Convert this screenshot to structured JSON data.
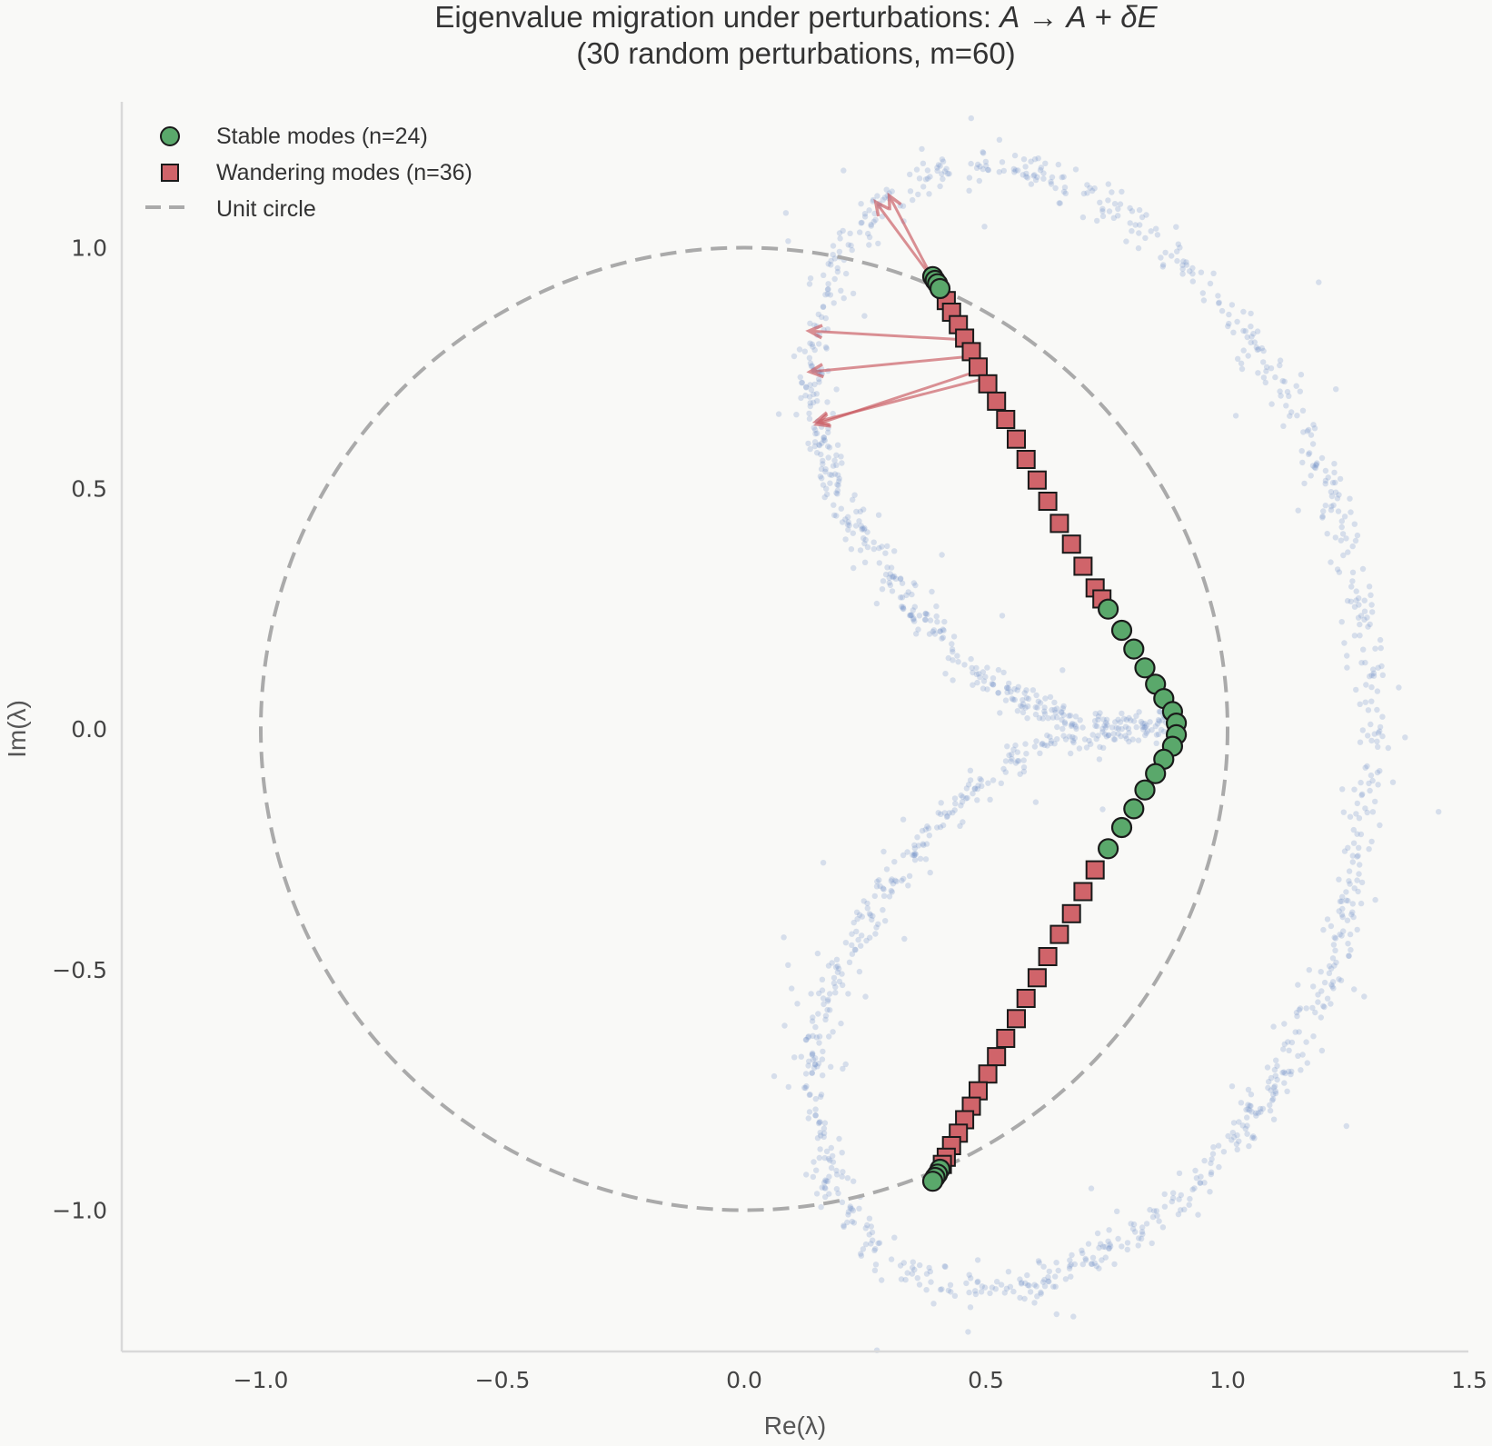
{
  "chart_data": {
    "type": "scatter",
    "title": "Eigenvalue migration under perturbations: A → A + δE",
    "title_parts": {
      "prefix": "Eigenvalue migration under perturbations: ",
      "math_a": "A",
      "arrow": " → ",
      "math_b": "A",
      "plus": " + ",
      "math_c": "δE"
    },
    "subtitle": "(30 random perturbations, m=60)",
    "xlabel": "Re(λ)",
    "ylabel": "Im(λ)",
    "xlim": [
      -1.3,
      1.5
    ],
    "ylim": [
      -1.3,
      1.28
    ],
    "xticks": [
      -1.0,
      -0.5,
      0.0,
      0.5,
      1.0,
      1.5
    ],
    "xtick_labels": [
      "−1.0",
      "−0.5",
      "0.0",
      "0.5",
      "1.0",
      "1.5"
    ],
    "yticks": [
      1.0,
      0.5,
      0.0,
      -0.5,
      -1.0
    ],
    "ytick_labels": [
      "1.0",
      "0.5",
      "0.0",
      "−0.5",
      "−1.0"
    ],
    "grid": false,
    "legend_position": "upper left",
    "legend": [
      {
        "label": "Stable modes (n=24)",
        "marker": "circle",
        "color": "#5aa86b"
      },
      {
        "label": "Wandering modes (n=36)",
        "marker": "square",
        "color": "#d0646a"
      },
      {
        "label": "Unit circle",
        "marker": "dashed-line",
        "color": "#aaaaaa"
      }
    ],
    "colors": {
      "stable": "#5aa86b",
      "wandering": "#d0646a",
      "unit_circle": "#aaaaaa",
      "perturbed": "#6f8fc7",
      "arrow": "#c9575e",
      "edge": "#1a1a1a",
      "axis": "#d9d9d9",
      "background": "#f9f9f7"
    },
    "series": [
      {
        "name": "Stable modes (n=24)",
        "marker": "circle",
        "points": [
          [
            0.39,
            0.94
          ],
          [
            0.395,
            0.932
          ],
          [
            0.4,
            0.925
          ],
          [
            0.405,
            0.915
          ],
          [
            0.753,
            0.249
          ],
          [
            0.781,
            0.205
          ],
          [
            0.806,
            0.166
          ],
          [
            0.829,
            0.127
          ],
          [
            0.851,
            0.093
          ],
          [
            0.868,
            0.063
          ],
          [
            0.886,
            0.036
          ],
          [
            0.894,
            0.012
          ],
          [
            0.894,
            -0.012
          ],
          [
            0.886,
            -0.036
          ],
          [
            0.868,
            -0.063
          ],
          [
            0.851,
            -0.093
          ],
          [
            0.829,
            -0.127
          ],
          [
            0.806,
            -0.166
          ],
          [
            0.781,
            -0.205
          ],
          [
            0.753,
            -0.249
          ],
          [
            0.405,
            -0.915
          ],
          [
            0.4,
            -0.925
          ],
          [
            0.395,
            -0.932
          ],
          [
            0.39,
            -0.94
          ]
        ]
      },
      {
        "name": "Wandering modes (n=36)",
        "marker": "square",
        "points": [
          [
            0.418,
            0.89
          ],
          [
            0.429,
            0.866
          ],
          [
            0.443,
            0.84
          ],
          [
            0.456,
            0.812
          ],
          [
            0.47,
            0.784
          ],
          [
            0.484,
            0.752
          ],
          [
            0.504,
            0.717
          ],
          [
            0.522,
            0.681
          ],
          [
            0.541,
            0.643
          ],
          [
            0.563,
            0.602
          ],
          [
            0.583,
            0.56
          ],
          [
            0.606,
            0.517
          ],
          [
            0.628,
            0.473
          ],
          [
            0.652,
            0.427
          ],
          [
            0.677,
            0.384
          ],
          [
            0.701,
            0.338
          ],
          [
            0.726,
            0.293
          ],
          [
            0.74,
            0.27
          ],
          [
            0.726,
            -0.293
          ],
          [
            0.701,
            -0.338
          ],
          [
            0.677,
            -0.384
          ],
          [
            0.652,
            -0.427
          ],
          [
            0.628,
            -0.473
          ],
          [
            0.606,
            -0.517
          ],
          [
            0.583,
            -0.56
          ],
          [
            0.563,
            -0.602
          ],
          [
            0.541,
            -0.643
          ],
          [
            0.522,
            -0.681
          ],
          [
            0.504,
            -0.717
          ],
          [
            0.484,
            -0.752
          ],
          [
            0.47,
            -0.784
          ],
          [
            0.456,
            -0.812
          ],
          [
            0.443,
            -0.84
          ],
          [
            0.429,
            -0.866
          ],
          [
            0.418,
            -0.89
          ],
          [
            0.41,
            -0.905
          ]
        ]
      },
      {
        "name": "Perturbed eigenvalues (cloud)",
        "marker": "dot",
        "description": "Faint blue scatter forming a heart-shaped envelope: outer lobe from (0.15,0.85) up to (0.55,1.17), down the right side to (1.3,0.0) and back to (0.55,-1.17), (0.15,-0.85); inner arm tracing from (0.15,0.6) down to the cusp near (0.65..0.9, 0.0)",
        "envelope_outer": [
          [
            0.14,
            0.75
          ],
          [
            0.18,
            0.95
          ],
          [
            0.27,
            1.08
          ],
          [
            0.4,
            1.15
          ],
          [
            0.55,
            1.17
          ],
          [
            0.7,
            1.12
          ],
          [
            0.85,
            1.02
          ],
          [
            1.0,
            0.88
          ],
          [
            1.12,
            0.7
          ],
          [
            1.21,
            0.5
          ],
          [
            1.27,
            0.28
          ],
          [
            1.3,
            0.05
          ],
          [
            1.3,
            -0.05
          ],
          [
            1.27,
            -0.28
          ],
          [
            1.21,
            -0.5
          ],
          [
            1.12,
            -0.7
          ],
          [
            1.0,
            -0.88
          ],
          [
            0.85,
            -1.02
          ],
          [
            0.7,
            -1.12
          ],
          [
            0.55,
            -1.17
          ],
          [
            0.4,
            -1.15
          ],
          [
            0.27,
            -1.08
          ],
          [
            0.18,
            -0.95
          ],
          [
            0.14,
            -0.75
          ]
        ],
        "envelope_inner": [
          [
            0.14,
            0.75
          ],
          [
            0.15,
            0.62
          ],
          [
            0.2,
            0.48
          ],
          [
            0.27,
            0.36
          ],
          [
            0.36,
            0.24
          ],
          [
            0.45,
            0.14
          ],
          [
            0.55,
            0.07
          ],
          [
            0.66,
            0.02
          ],
          [
            0.8,
            0.01
          ],
          [
            0.88,
            0.0
          ],
          [
            0.8,
            -0.01
          ],
          [
            0.66,
            -0.02
          ],
          [
            0.55,
            -0.07
          ],
          [
            0.45,
            -0.14
          ],
          [
            0.36,
            -0.24
          ],
          [
            0.27,
            -0.36
          ],
          [
            0.2,
            -0.48
          ],
          [
            0.15,
            -0.62
          ],
          [
            0.14,
            -0.75
          ]
        ],
        "count_per_curve": 900
      }
    ],
    "arrows": [
      {
        "from": [
          0.39,
          0.935
        ],
        "to": [
          0.272,
          1.095
        ]
      },
      {
        "from": [
          0.392,
          0.932
        ],
        "to": [
          0.3,
          1.108
        ]
      },
      {
        "from": [
          0.465,
          0.808
        ],
        "to": [
          0.134,
          0.827
        ]
      },
      {
        "from": [
          0.478,
          0.775
        ],
        "to": [
          0.136,
          0.742
        ]
      },
      {
        "from": [
          0.49,
          0.746
        ],
        "to": [
          0.15,
          0.633
        ]
      },
      {
        "from": [
          0.496,
          0.728
        ],
        "to": [
          0.148,
          0.638
        ]
      }
    ],
    "unit_circle": {
      "center": [
        0,
        0
      ],
      "radius": 1.0,
      "style": "dashed"
    }
  }
}
